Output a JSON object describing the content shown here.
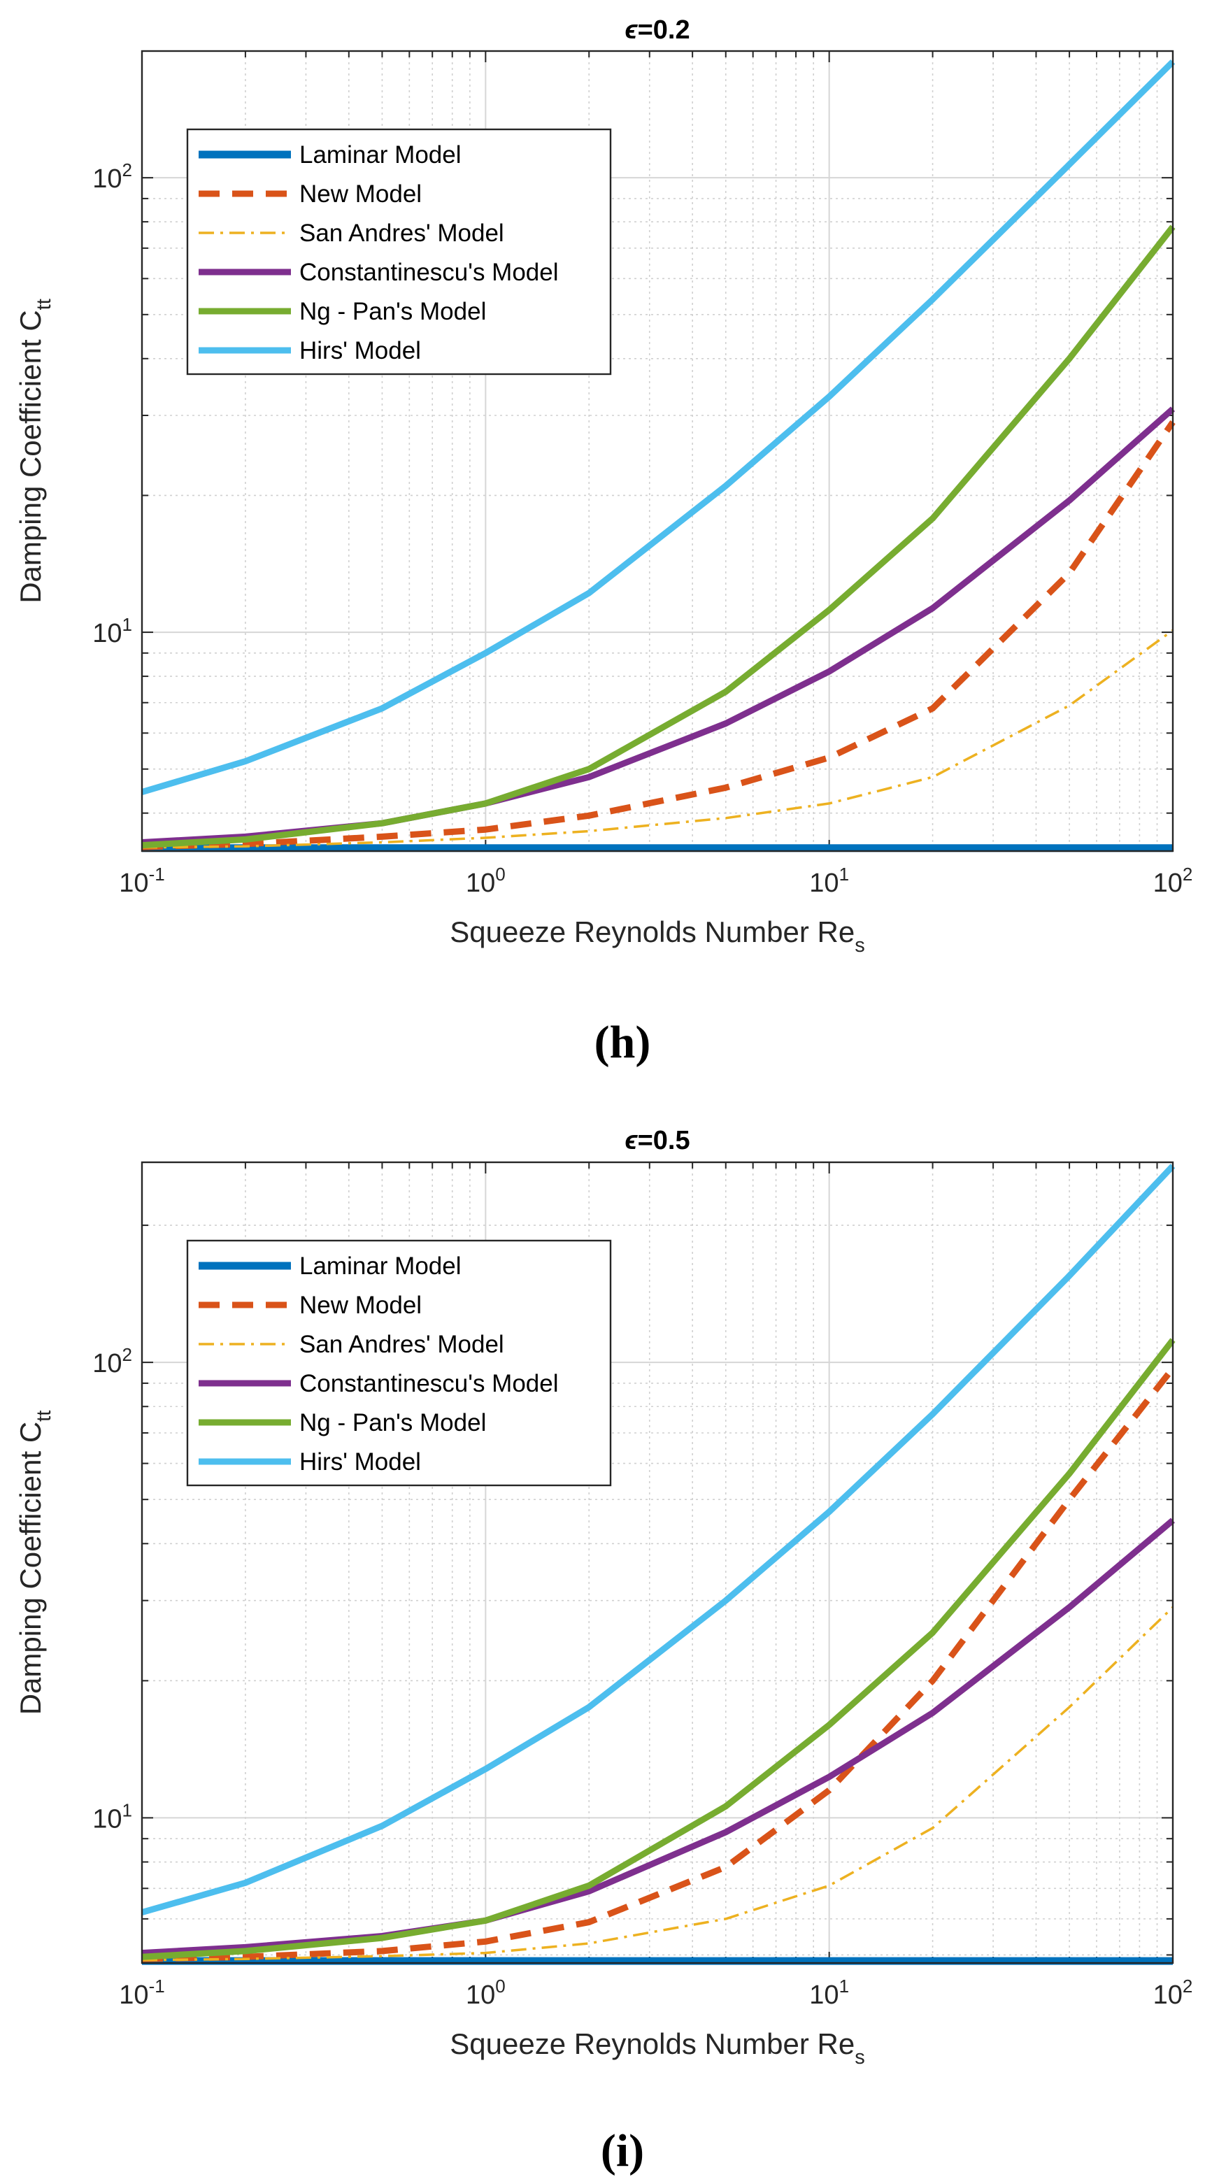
{
  "chart_data": [
    {
      "type": "line",
      "panel_label": "(h)",
      "title_symbol": "ϵ",
      "title_value": "=0.2",
      "xlabel": "Squeeze Reynolds Number Re",
      "xlabel_sub": "s",
      "ylabel": "Damping Coefficient C",
      "ylabel_sub": "tt",
      "xscale": "log",
      "yscale": "log",
      "xlim": [
        0.1,
        100
      ],
      "ylim": [
        3.3,
        190
      ],
      "grid": true,
      "legend_position": "top-left",
      "x_ticks": [
        {
          "base": "10",
          "exp": "-1"
        },
        {
          "base": "10",
          "exp": "0"
        },
        {
          "base": "10",
          "exp": "1"
        },
        {
          "base": "10",
          "exp": "2"
        }
      ],
      "y_ticks": [
        {
          "base": "10",
          "exp": "1"
        },
        {
          "base": "10",
          "exp": "2"
        }
      ],
      "x": [
        0.1,
        0.2,
        0.5,
        1,
        2,
        5,
        10,
        20,
        50,
        100
      ],
      "series": [
        {
          "name": "Laminar Model",
          "color": "#0072bd",
          "style": "solid-thick",
          "values": [
            3.35,
            3.35,
            3.35,
            3.35,
            3.35,
            3.35,
            3.35,
            3.35,
            3.35,
            3.35
          ]
        },
        {
          "name": "New Model",
          "color": "#d95319",
          "style": "dashed",
          "values": [
            3.37,
            3.42,
            3.55,
            3.68,
            3.95,
            4.55,
            5.3,
            6.8,
            13.5,
            29
          ]
        },
        {
          "name": "San Andres' Model",
          "color": "#edb120",
          "style": "dashdot",
          "values": [
            3.36,
            3.38,
            3.45,
            3.53,
            3.65,
            3.9,
            4.2,
            4.8,
            6.9,
            10.1
          ]
        },
        {
          "name": "Constantinescu's Model",
          "color": "#7e2f8e",
          "style": "solid",
          "values": [
            3.45,
            3.55,
            3.8,
            4.2,
            4.8,
            6.3,
            8.2,
            11.3,
            19.5,
            31
          ]
        },
        {
          "name": "Ng - Pan's Model",
          "color": "#77ac30",
          "style": "solid",
          "values": [
            3.4,
            3.5,
            3.8,
            4.2,
            5.0,
            7.4,
            11.2,
            17.8,
            40,
            78
          ]
        },
        {
          "name": "Hirs' Model",
          "color": "#4dbeee",
          "style": "solid",
          "values": [
            4.45,
            5.2,
            6.8,
            9.0,
            12.2,
            21,
            33,
            54,
            107,
            180
          ]
        }
      ]
    },
    {
      "type": "line",
      "panel_label": "(i)",
      "title_symbol": "ϵ",
      "title_value": "=0.5",
      "xlabel": "Squeeze Reynolds Number Re",
      "xlabel_sub": "s",
      "ylabel": "Damping Coefficient C",
      "ylabel_sub": "tt",
      "xscale": "log",
      "yscale": "log",
      "xlim": [
        0.1,
        100
      ],
      "ylim": [
        4.8,
        275
      ],
      "grid": true,
      "legend_position": "top-left",
      "x_ticks": [
        {
          "base": "10",
          "exp": "-1"
        },
        {
          "base": "10",
          "exp": "0"
        },
        {
          "base": "10",
          "exp": "1"
        },
        {
          "base": "10",
          "exp": "2"
        }
      ],
      "y_ticks": [
        {
          "base": "10",
          "exp": "1"
        },
        {
          "base": "10",
          "exp": "2"
        }
      ],
      "x": [
        0.1,
        0.2,
        0.5,
        1,
        2,
        5,
        10,
        20,
        50,
        100
      ],
      "series": [
        {
          "name": "Laminar Model",
          "color": "#0072bd",
          "style": "solid-thick",
          "values": [
            4.85,
            4.85,
            4.85,
            4.85,
            4.85,
            4.85,
            4.85,
            4.85,
            4.85,
            4.85
          ]
        },
        {
          "name": "New Model",
          "color": "#d95319",
          "style": "dashed",
          "values": [
            4.9,
            4.95,
            5.1,
            5.35,
            5.9,
            7.8,
            11.5,
            20,
            50,
            97
          ]
        },
        {
          "name": "San Andres' Model",
          "color": "#edb120",
          "style": "dashdot",
          "values": [
            4.87,
            4.9,
            4.97,
            5.05,
            5.3,
            6.0,
            7.1,
            9.5,
            17.5,
            29
          ]
        },
        {
          "name": "Constantinescu's Model",
          "color": "#7e2f8e",
          "style": "solid",
          "values": [
            5.05,
            5.2,
            5.5,
            5.95,
            6.9,
            9.3,
            12.3,
            17,
            29,
            45
          ]
        },
        {
          "name": "Ng - Pan's Model",
          "color": "#77ac30",
          "style": "solid",
          "values": [
            4.95,
            5.1,
            5.45,
            5.95,
            7.1,
            10.6,
            16,
            25.5,
            57,
            112
          ]
        },
        {
          "name": "Hirs' Model",
          "color": "#4dbeee",
          "style": "solid",
          "values": [
            6.2,
            7.2,
            9.6,
            12.8,
            17.5,
            30,
            47,
            77,
            155,
            270
          ]
        }
      ]
    }
  ]
}
